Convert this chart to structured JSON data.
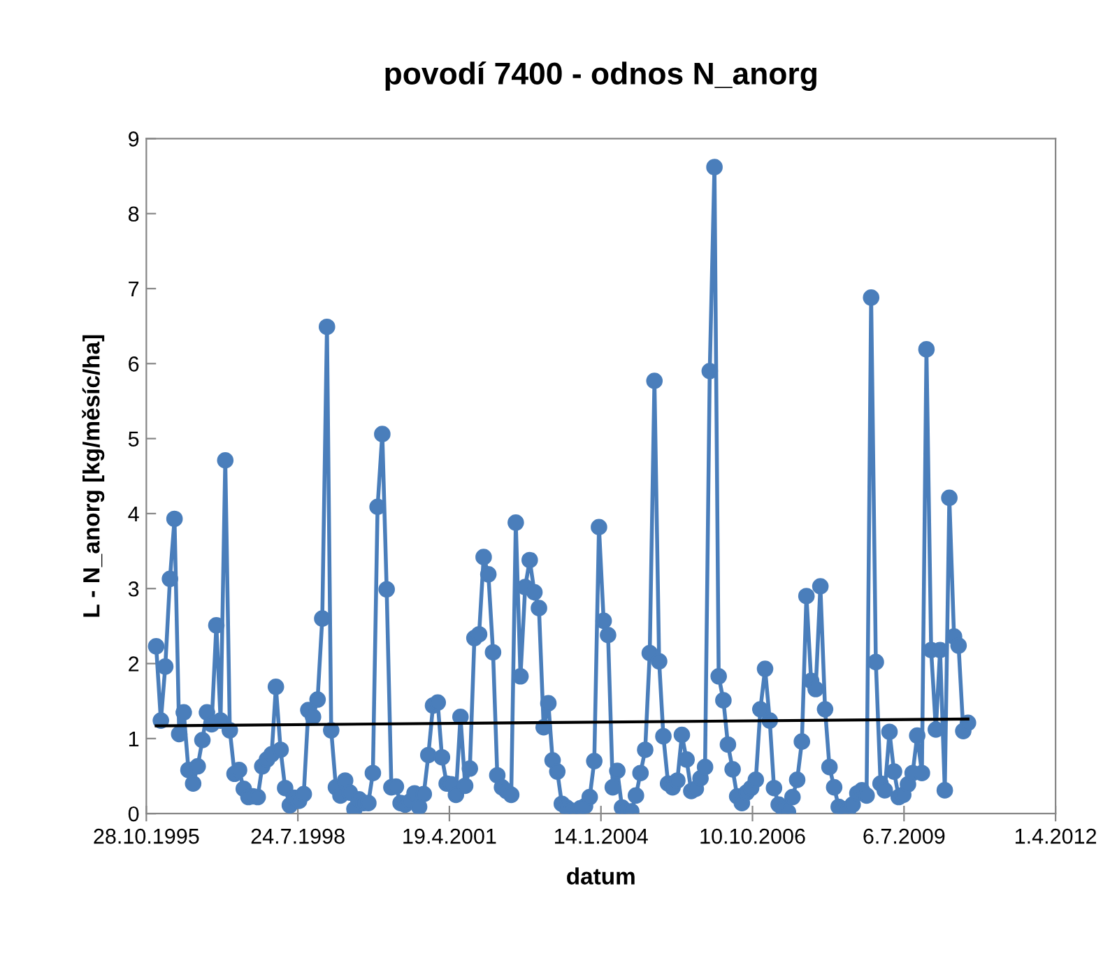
{
  "chart_data": {
    "type": "line",
    "title": "povodí 7400 - odnos N_anorg",
    "xlabel": "datum",
    "ylabel": "L - N_anorg [kg/měsíc/ha]",
    "x": [
      "1996-01",
      "1996-02",
      "1996-03",
      "1996-04",
      "1996-05",
      "1996-06",
      "1996-07",
      "1996-08",
      "1996-09",
      "1996-10",
      "1996-11",
      "1996-12",
      "1997-01",
      "1997-02",
      "1997-03",
      "1997-04",
      "1997-05",
      "1997-06",
      "1997-07",
      "1997-08",
      "1997-09",
      "1997-10",
      "1997-11",
      "1997-12",
      "1998-01",
      "1998-02",
      "1998-03",
      "1998-04",
      "1998-05",
      "1998-06",
      "1998-07",
      "1998-08",
      "1998-09",
      "1998-10",
      "1998-11",
      "1998-12",
      "1999-01",
      "1999-02",
      "1999-03",
      "1999-04",
      "1999-05",
      "1999-06",
      "1999-07",
      "1999-08",
      "1999-09",
      "1999-10",
      "1999-11",
      "1999-12",
      "2000-01",
      "2000-02",
      "2000-03",
      "2000-04",
      "2000-05",
      "2000-06",
      "2000-07",
      "2000-08",
      "2000-09",
      "2000-10",
      "2000-11",
      "2000-12",
      "2001-01",
      "2001-02",
      "2001-03",
      "2001-04",
      "2001-05",
      "2001-06",
      "2001-07",
      "2001-08",
      "2001-09",
      "2001-10",
      "2001-11",
      "2001-12",
      "2002-01",
      "2002-02",
      "2002-03",
      "2002-04",
      "2002-05",
      "2002-06",
      "2002-07",
      "2002-08",
      "2002-09",
      "2002-10",
      "2002-11",
      "2002-12",
      "2003-01",
      "2003-02",
      "2003-03",
      "2003-04",
      "2003-05",
      "2003-06",
      "2003-07",
      "2003-08",
      "2003-09",
      "2003-10",
      "2003-11",
      "2003-12",
      "2004-01",
      "2004-02",
      "2004-03",
      "2004-04",
      "2004-05",
      "2004-06",
      "2004-07",
      "2004-08",
      "2004-09",
      "2004-10",
      "2004-11",
      "2004-12",
      "2005-01",
      "2005-02",
      "2005-03",
      "2005-04",
      "2005-05",
      "2005-06",
      "2005-07",
      "2005-08",
      "2005-09",
      "2005-10",
      "2005-11",
      "2005-12",
      "2006-01",
      "2006-02",
      "2006-03",
      "2006-04",
      "2006-05",
      "2006-06",
      "2006-07",
      "2006-08",
      "2006-09",
      "2006-10",
      "2006-11",
      "2006-12",
      "2007-01",
      "2007-02",
      "2007-03",
      "2007-04",
      "2007-05",
      "2007-06",
      "2007-07",
      "2007-08",
      "2007-09",
      "2007-10",
      "2007-11",
      "2007-12",
      "2008-01",
      "2008-02",
      "2008-03",
      "2008-04",
      "2008-05",
      "2008-06",
      "2008-07",
      "2008-08",
      "2008-09",
      "2008-10",
      "2008-11",
      "2008-12",
      "2009-01",
      "2009-02",
      "2009-03",
      "2009-04",
      "2009-05",
      "2009-06",
      "2009-07",
      "2009-08",
      "2009-09",
      "2009-10",
      "2009-11",
      "2009-12",
      "2010-01",
      "2010-02",
      "2010-03",
      "2010-04",
      "2010-05",
      "2010-06",
      "2010-07",
      "2010-08",
      "2010-09"
    ],
    "series": [
      {
        "color": "#4a7ebb",
        "marker": "circle",
        "values": [
          2.23,
          1.24,
          1.96,
          3.13,
          3.93,
          1.06,
          1.35,
          0.58,
          0.4,
          0.63,
          0.98,
          1.35,
          1.19,
          2.51,
          1.24,
          4.71,
          1.11,
          0.53,
          0.58,
          0.33,
          0.22,
          0.23,
          0.22,
          0.63,
          0.72,
          0.79,
          1.69,
          0.85,
          0.34,
          0.11,
          0.21,
          0.17,
          0.26,
          1.38,
          1.29,
          1.52,
          2.6,
          6.49,
          1.11,
          0.35,
          0.24,
          0.44,
          0.28,
          0.06,
          0.19,
          0.14,
          0.14,
          0.54,
          4.09,
          5.06,
          2.99,
          0.35,
          0.36,
          0.14,
          0.12,
          0.16,
          0.27,
          0.09,
          0.26,
          0.78,
          1.44,
          1.48,
          0.75,
          0.4,
          0.39,
          0.25,
          1.29,
          0.37,
          0.6,
          2.34,
          2.39,
          3.42,
          3.19,
          2.15,
          0.51,
          0.35,
          0.3,
          0.25,
          3.88,
          1.83,
          3.02,
          3.38,
          2.95,
          2.74,
          1.15,
          1.47,
          0.71,
          0.56,
          0.13,
          0.08,
          0.04,
          0.03,
          0.07,
          0.1,
          0.22,
          0.7,
          3.82,
          2.57,
          2.38,
          0.35,
          0.57,
          0.08,
          0.03,
          0.03,
          0.24,
          0.54,
          0.85,
          2.14,
          5.77,
          2.03,
          1.03,
          0.4,
          0.35,
          0.44,
          1.05,
          0.72,
          0.3,
          0.33,
          0.47,
          0.62,
          5.9,
          8.62,
          1.83,
          1.51,
          0.92,
          0.59,
          0.23,
          0.14,
          0.28,
          0.34,
          0.45,
          1.39,
          1.93,
          1.24,
          0.34,
          0.12,
          0.06,
          0.02,
          0.22,
          0.45,
          0.96,
          2.9,
          1.77,
          1.66,
          3.03,
          1.39,
          0.62,
          0.35,
          0.09,
          0.06,
          0.04,
          0.12,
          0.27,
          0.31,
          0.24,
          6.88,
          2.02,
          0.4,
          0.31,
          1.09,
          0.56,
          0.22,
          0.25,
          0.39,
          0.54,
          1.04,
          0.54,
          6.19,
          2.18,
          1.12,
          2.18,
          0.31,
          4.21,
          2.36,
          2.24,
          1.1,
          1.21
        ]
      },
      {
        "color": "#000000",
        "marker": "none",
        "x": [
          "1996-01",
          "2010-09"
        ],
        "values": [
          1.17,
          1.26
        ]
      }
    ],
    "xlim": [
      "1995-10-28",
      "2012-04-01"
    ],
    "xticks": [
      {
        "value": "1995-10-28",
        "label": "28.10.1995"
      },
      {
        "value": "1998-07-24",
        "label": "24.7.1998"
      },
      {
        "value": "2001-04-19",
        "label": "19.4.2001"
      },
      {
        "value": "2004-01-14",
        "label": "14.1.2004"
      },
      {
        "value": "2006-10-10",
        "label": "10.10.2006"
      },
      {
        "value": "2009-07-06",
        "label": "6.7.2009"
      },
      {
        "value": "2012-04-01",
        "label": "1.4.2012"
      }
    ],
    "ylim": [
      0,
      9
    ],
    "yticks": [
      0,
      1,
      2,
      3,
      4,
      5,
      6,
      7,
      8,
      9
    ],
    "grid": false,
    "legend": false
  }
}
